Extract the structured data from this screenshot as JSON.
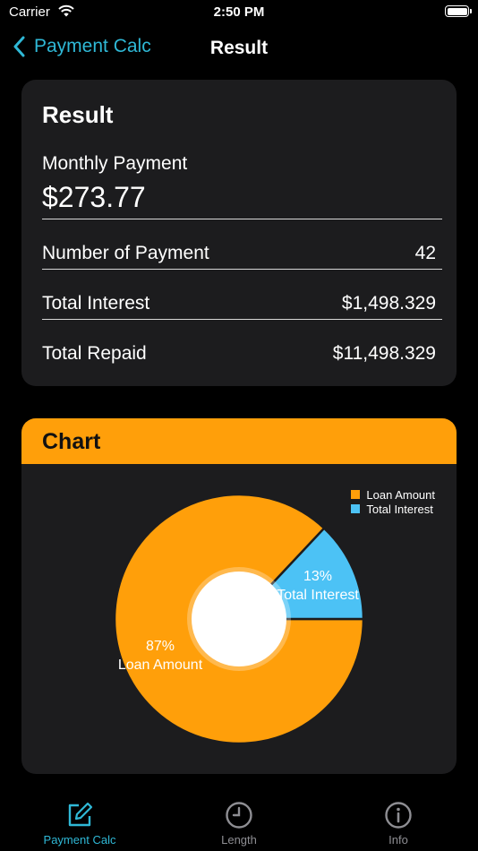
{
  "status_bar": {
    "carrier": "Carrier",
    "time": "2:50 PM"
  },
  "nav": {
    "back_label": "Payment Calc",
    "title": "Result"
  },
  "result": {
    "heading": "Result",
    "monthly_label": "Monthly Payment",
    "monthly_value": "$273.77",
    "rows": [
      {
        "label": "Number of Payment",
        "value": "42"
      },
      {
        "label": "Total Interest",
        "value": "$1,498.329"
      },
      {
        "label": "Total Repaid",
        "value": "$11,498.329"
      }
    ]
  },
  "chart": {
    "heading": "Chart",
    "colors": {
      "loan": "#ff9f0a",
      "interest": "#4cc2f5",
      "header": "#ff9f0a"
    }
  },
  "chart_data": {
    "type": "pie",
    "donut": true,
    "categories": [
      "Loan Amount",
      "Total Interest"
    ],
    "values": [
      87,
      13
    ],
    "labels": [
      "87%",
      "13%"
    ],
    "legend": "top-right"
  },
  "tabs": [
    {
      "label": "Payment Calc",
      "icon": "edit-icon",
      "active": true
    },
    {
      "label": "Length",
      "icon": "clock-icon",
      "active": false
    },
    {
      "label": "Info",
      "icon": "info-icon",
      "active": false
    }
  ]
}
